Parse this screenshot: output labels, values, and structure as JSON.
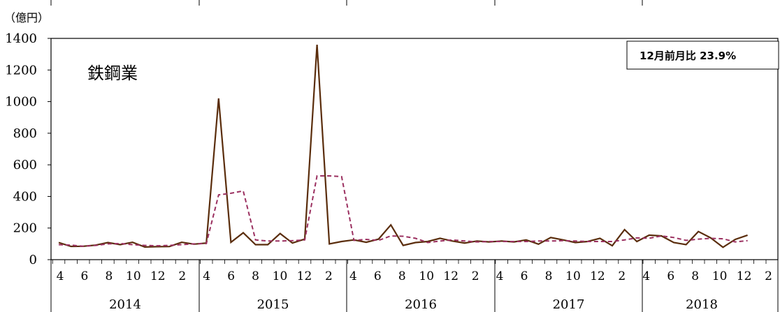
{
  "chart_data": {
    "type": "line",
    "unit_label": "（億円）",
    "sector_label": "鉄鋼業",
    "note": "12月前月比  23.9%",
    "ylim": [
      0,
      1400
    ],
    "yticks": [
      0,
      200,
      400,
      600,
      800,
      1000,
      1200,
      1400
    ],
    "month_labels": [
      "4",
      "6",
      "8",
      "10",
      "12",
      "2",
      "4",
      "6",
      "8",
      "10",
      "12",
      "2",
      "4",
      "6",
      "8",
      "10",
      "12",
      "2",
      "4",
      "6",
      "8",
      "10",
      "12",
      "2",
      "4",
      "6",
      "8",
      "10",
      "12",
      "2"
    ],
    "year_labels": [
      "2014",
      "2015",
      "2016",
      "2017",
      "2018"
    ],
    "series": [
      {
        "style": "solid",
        "color": "#5a2d0c",
        "values": [
          108,
          84,
          85,
          92,
          108,
          95,
          110,
          80,
          82,
          83,
          110,
          98,
          105,
          1020,
          110,
          170,
          95,
          95,
          165,
          105,
          130,
          1360,
          100,
          115,
          125,
          110,
          130,
          220,
          90,
          108,
          115,
          135,
          118,
          105,
          118,
          112,
          118,
          112,
          125,
          98,
          140,
          125,
          108,
          115,
          135,
          88,
          190,
          115,
          155,
          150,
          108,
          95,
          178,
          138,
          78,
          128,
          155
        ]
      },
      {
        "style": "dashed",
        "color": "#9b3060",
        "values": [
          95,
          92,
          85,
          90,
          100,
          102,
          95,
          90,
          88,
          90,
          95,
          100,
          102,
          410,
          420,
          435,
          125,
          118,
          118,
          120,
          125,
          530,
          530,
          525,
          122,
          128,
          122,
          150,
          148,
          135,
          108,
          118,
          125,
          118,
          112,
          115,
          115,
          115,
          115,
          118,
          118,
          120,
          118,
          115,
          115,
          115,
          125,
          138,
          135,
          150,
          140,
          122,
          130,
          135,
          132,
          112,
          120
        ]
      }
    ]
  }
}
